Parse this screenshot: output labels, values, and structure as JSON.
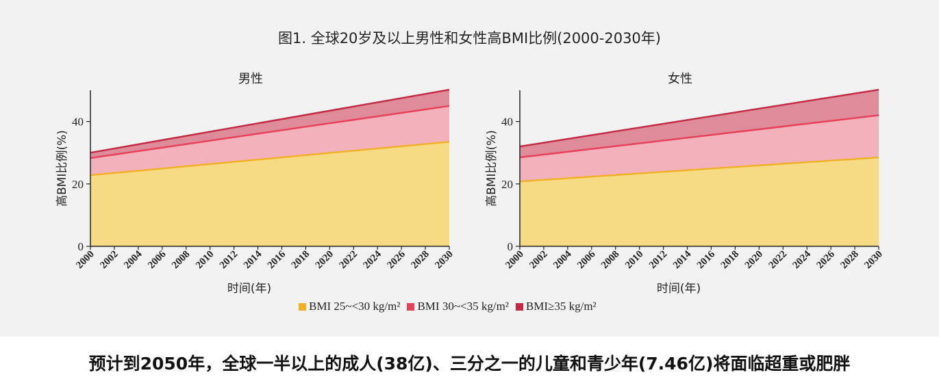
{
  "title": "图1. 全球20岁及以上男性和女性高BMI比例(2000-2030年)",
  "headline": "预计到2050年，全球一半以上的成人(38亿)、三分之一的儿童和青少年(7.46亿)将面临超重或肥胖",
  "legend": [
    {
      "label": "BMI 25~<30 kg/m²",
      "color": "#f0b128"
    },
    {
      "label": "BMI 30~<35 kg/m²",
      "color": "#e8405a"
    },
    {
      "label": "BMI≥35 kg/m²",
      "color": "#c42a44"
    }
  ],
  "colors": {
    "band1_fill": "#f7da84",
    "band1_line": "#f0b128",
    "band2_fill": "#f3b2bb",
    "band2_line": "#e8405a",
    "band3_fill": "#df8c9a",
    "band3_line": "#c42a44"
  },
  "chart_data": [
    {
      "type": "area",
      "stacked": true,
      "title": "男性",
      "xlabel": "时间(年)",
      "ylabel": "高BMI比例(%)",
      "x": [
        2000,
        2030
      ],
      "xticks": [
        "2000",
        "2002",
        "2004",
        "2006",
        "2008",
        "2010",
        "2012",
        "2014",
        "2016",
        "2018",
        "2020",
        "2022",
        "2024",
        "2026",
        "2028",
        "2030"
      ],
      "yticks": [
        "0",
        "20",
        "40"
      ],
      "ylim": [
        0,
        50
      ],
      "series": [
        {
          "name": "BMI 25~<30 kg/m²",
          "cumulative": [
            22.8,
            33.5
          ]
        },
        {
          "name": "BMI 30~<35 kg/m²",
          "cumulative": [
            28.3,
            45.0
          ]
        },
        {
          "name": "BMI≥35 kg/m²",
          "cumulative": [
            30.0,
            50.2
          ]
        }
      ]
    },
    {
      "type": "area",
      "stacked": true,
      "title": "女性",
      "xlabel": "时间(年)",
      "ylabel": "高BMI比例(%)",
      "x": [
        2000,
        2030
      ],
      "xticks": [
        "2000",
        "2002",
        "2004",
        "2006",
        "2008",
        "2010",
        "2012",
        "2014",
        "2016",
        "2018",
        "2020",
        "2022",
        "2024",
        "2026",
        "2028",
        "2030"
      ],
      "yticks": [
        "0",
        "20",
        "40"
      ],
      "ylim": [
        0,
        50
      ],
      "series": [
        {
          "name": "BMI 25~<30 kg/m²",
          "cumulative": [
            20.8,
            28.5
          ]
        },
        {
          "name": "BMI 30~<35 kg/m²",
          "cumulative": [
            28.5,
            42.0
          ]
        },
        {
          "name": "BMI≥35 kg/m²",
          "cumulative": [
            32.0,
            50.2
          ]
        }
      ]
    }
  ]
}
